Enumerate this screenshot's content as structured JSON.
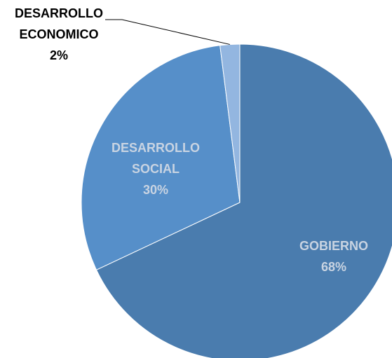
{
  "chart_data": {
    "type": "pie",
    "slices": [
      {
        "label_lines": [
          "GOBIERNO"
        ],
        "value": 68,
        "percent_text": "68%",
        "color": "#4A7CAE",
        "label_color": "#C9D4E2"
      },
      {
        "label_lines": [
          "DESARROLLO",
          "SOCIAL"
        ],
        "value": 30,
        "percent_text": "30%",
        "color": "#568FC9",
        "label_color": "#C9D4E2"
      },
      {
        "label_lines": [
          "DESARROLLO",
          "ECONOMICO"
        ],
        "value": 2,
        "percent_text": "2%",
        "color": "#93B6E0",
        "label_color": "#000000"
      }
    ],
    "start_angle_deg": 0,
    "direction": "clockwise"
  }
}
